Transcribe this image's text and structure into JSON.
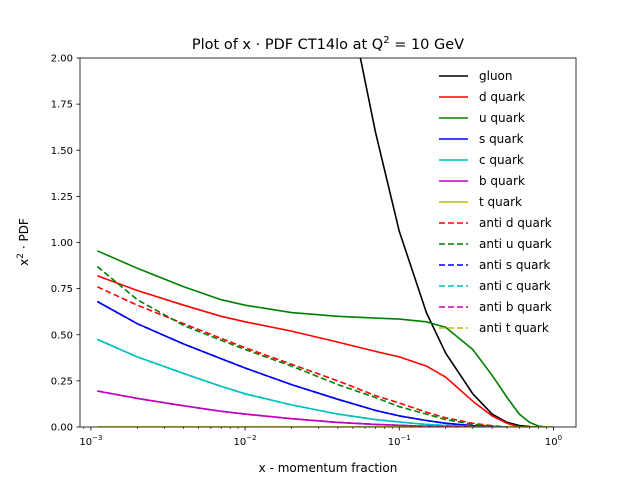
{
  "chart_data": {
    "type": "line",
    "title": "Plot of x · PDF CT14lo at Q",
    "title_superscript": "2",
    "title_suffix": " = 10 GeV",
    "xlabel": "x - momentum fraction",
    "ylabel": "x",
    "ylabel_superscript": "2",
    "ylabel_suffix": " · PDF",
    "x_scale": "log",
    "xlim": [
      0.00085,
      1.4
    ],
    "ylim": [
      0.0,
      2.0
    ],
    "grid": false,
    "legend_position": "top-right",
    "x_ticks": [
      {
        "value": 0.001,
        "base": "10",
        "exp": "−3"
      },
      {
        "value": 0.01,
        "base": "10",
        "exp": "−2"
      },
      {
        "value": 0.1,
        "base": "10",
        "exp": "−1"
      },
      {
        "value": 1,
        "base": "10",
        "exp": "0"
      }
    ],
    "y_ticks": [
      {
        "value": 0.0,
        "label": "0.00"
      },
      {
        "value": 0.25,
        "label": "0.25"
      },
      {
        "value": 0.5,
        "label": "0.50"
      },
      {
        "value": 0.75,
        "label": "0.75"
      },
      {
        "value": 1.0,
        "label": "1.00"
      },
      {
        "value": 1.25,
        "label": "1.25"
      },
      {
        "value": 1.5,
        "label": "1.50"
      },
      {
        "value": 1.75,
        "label": "1.75"
      },
      {
        "value": 2.0,
        "label": "2.00"
      }
    ],
    "series": [
      {
        "name": "gluon",
        "color": "#000000",
        "dash": "solid",
        "x": [
          0.05,
          0.07,
          0.1,
          0.15,
          0.2,
          0.3,
          0.4,
          0.5,
          0.6,
          0.7,
          0.8
        ],
        "y": [
          2.2,
          1.6,
          1.06,
          0.62,
          0.4,
          0.18,
          0.07,
          0.025,
          0.008,
          0.002,
          0.0
        ]
      },
      {
        "name": "d quark",
        "color": "#ff0000",
        "dash": "solid",
        "x": [
          0.0011,
          0.002,
          0.004,
          0.007,
          0.01,
          0.02,
          0.04,
          0.07,
          0.1,
          0.15,
          0.2,
          0.3,
          0.4,
          0.5,
          0.6
        ],
        "y": [
          0.82,
          0.74,
          0.66,
          0.6,
          0.57,
          0.52,
          0.46,
          0.41,
          0.38,
          0.33,
          0.27,
          0.14,
          0.06,
          0.02,
          0.0
        ]
      },
      {
        "name": "u quark",
        "color": "#008000",
        "dash": "solid",
        "x": [
          0.0011,
          0.002,
          0.004,
          0.007,
          0.01,
          0.02,
          0.04,
          0.07,
          0.1,
          0.15,
          0.2,
          0.3,
          0.4,
          0.5,
          0.6,
          0.7,
          0.8,
          0.9
        ],
        "y": [
          0.955,
          0.86,
          0.76,
          0.69,
          0.66,
          0.62,
          0.6,
          0.59,
          0.585,
          0.57,
          0.54,
          0.42,
          0.28,
          0.16,
          0.07,
          0.025,
          0.005,
          0.0
        ]
      },
      {
        "name": "s quark",
        "color": "#0000ff",
        "dash": "solid",
        "x": [
          0.0011,
          0.002,
          0.004,
          0.007,
          0.01,
          0.02,
          0.04,
          0.07,
          0.1,
          0.15,
          0.2,
          0.3,
          0.4,
          0.5
        ],
        "y": [
          0.68,
          0.56,
          0.45,
          0.37,
          0.32,
          0.23,
          0.15,
          0.09,
          0.06,
          0.035,
          0.02,
          0.007,
          0.002,
          0.0
        ]
      },
      {
        "name": "c quark",
        "color": "#00bfbf",
        "dash": "solid",
        "x": [
          0.0011,
          0.002,
          0.004,
          0.007,
          0.01,
          0.02,
          0.04,
          0.07,
          0.1,
          0.15,
          0.2,
          0.3,
          0.4,
          0.5
        ],
        "y": [
          0.475,
          0.38,
          0.29,
          0.22,
          0.18,
          0.12,
          0.07,
          0.04,
          0.027,
          0.014,
          0.008,
          0.002,
          0.0005,
          0.0
        ]
      },
      {
        "name": "b quark",
        "color": "#bf00bf",
        "dash": "solid",
        "x": [
          0.0011,
          0.002,
          0.004,
          0.007,
          0.01,
          0.02,
          0.04,
          0.07,
          0.1,
          0.15,
          0.2,
          0.3,
          0.4
        ],
        "y": [
          0.195,
          0.155,
          0.115,
          0.085,
          0.07,
          0.045,
          0.025,
          0.014,
          0.009,
          0.004,
          0.002,
          0.0005,
          0.0
        ]
      },
      {
        "name": "t quark",
        "color": "#bfbf00",
        "dash": "solid",
        "x": [
          0.0011,
          0.01,
          0.1,
          1.0
        ],
        "y": [
          0.0,
          0.0,
          0.0,
          0.0
        ]
      },
      {
        "name": "anti d quark",
        "color": "#ff0000",
        "dash": "dashed",
        "x": [
          0.0011,
          0.002,
          0.004,
          0.007,
          0.01,
          0.02,
          0.04,
          0.07,
          0.1,
          0.15,
          0.2,
          0.3,
          0.4,
          0.5
        ],
        "y": [
          0.76,
          0.66,
          0.56,
          0.48,
          0.43,
          0.34,
          0.25,
          0.17,
          0.13,
          0.08,
          0.05,
          0.02,
          0.007,
          0.0
        ]
      },
      {
        "name": "anti u quark",
        "color": "#008000",
        "dash": "dashed",
        "x": [
          0.0011,
          0.002,
          0.004,
          0.007,
          0.01,
          0.02,
          0.04,
          0.07,
          0.1,
          0.15,
          0.2,
          0.3,
          0.4,
          0.5
        ],
        "y": [
          0.87,
          0.69,
          0.55,
          0.47,
          0.42,
          0.33,
          0.23,
          0.16,
          0.11,
          0.07,
          0.04,
          0.015,
          0.004,
          0.0
        ]
      },
      {
        "name": "anti s quark",
        "color": "#0000ff",
        "dash": "dashed",
        "x": [
          0.0011,
          0.002,
          0.004,
          0.007,
          0.01,
          0.02,
          0.04,
          0.07,
          0.1,
          0.15,
          0.2,
          0.3,
          0.4,
          0.5
        ],
        "y": [
          0.68,
          0.56,
          0.45,
          0.37,
          0.32,
          0.23,
          0.15,
          0.09,
          0.06,
          0.035,
          0.02,
          0.007,
          0.002,
          0.0
        ]
      },
      {
        "name": "anti c quark",
        "color": "#00bfbf",
        "dash": "dashed",
        "x": [
          0.0011,
          0.002,
          0.004,
          0.007,
          0.01,
          0.02,
          0.04,
          0.07,
          0.1,
          0.15,
          0.2,
          0.3,
          0.4,
          0.5
        ],
        "y": [
          0.475,
          0.38,
          0.29,
          0.22,
          0.18,
          0.12,
          0.07,
          0.04,
          0.027,
          0.014,
          0.008,
          0.002,
          0.0005,
          0.0
        ]
      },
      {
        "name": "anti b quark",
        "color": "#bf00bf",
        "dash": "dashed",
        "x": [
          0.0011,
          0.002,
          0.004,
          0.007,
          0.01,
          0.02,
          0.04,
          0.07,
          0.1,
          0.15,
          0.2,
          0.3,
          0.4
        ],
        "y": [
          0.195,
          0.155,
          0.115,
          0.085,
          0.07,
          0.045,
          0.025,
          0.014,
          0.009,
          0.004,
          0.002,
          0.0005,
          0.0
        ]
      },
      {
        "name": "anti t quark",
        "color": "#bfbf00",
        "dash": "dashed",
        "x": [
          0.0011,
          0.01,
          0.1,
          1.0
        ],
        "y": [
          0.0,
          0.0,
          0.0,
          0.0
        ]
      }
    ]
  }
}
